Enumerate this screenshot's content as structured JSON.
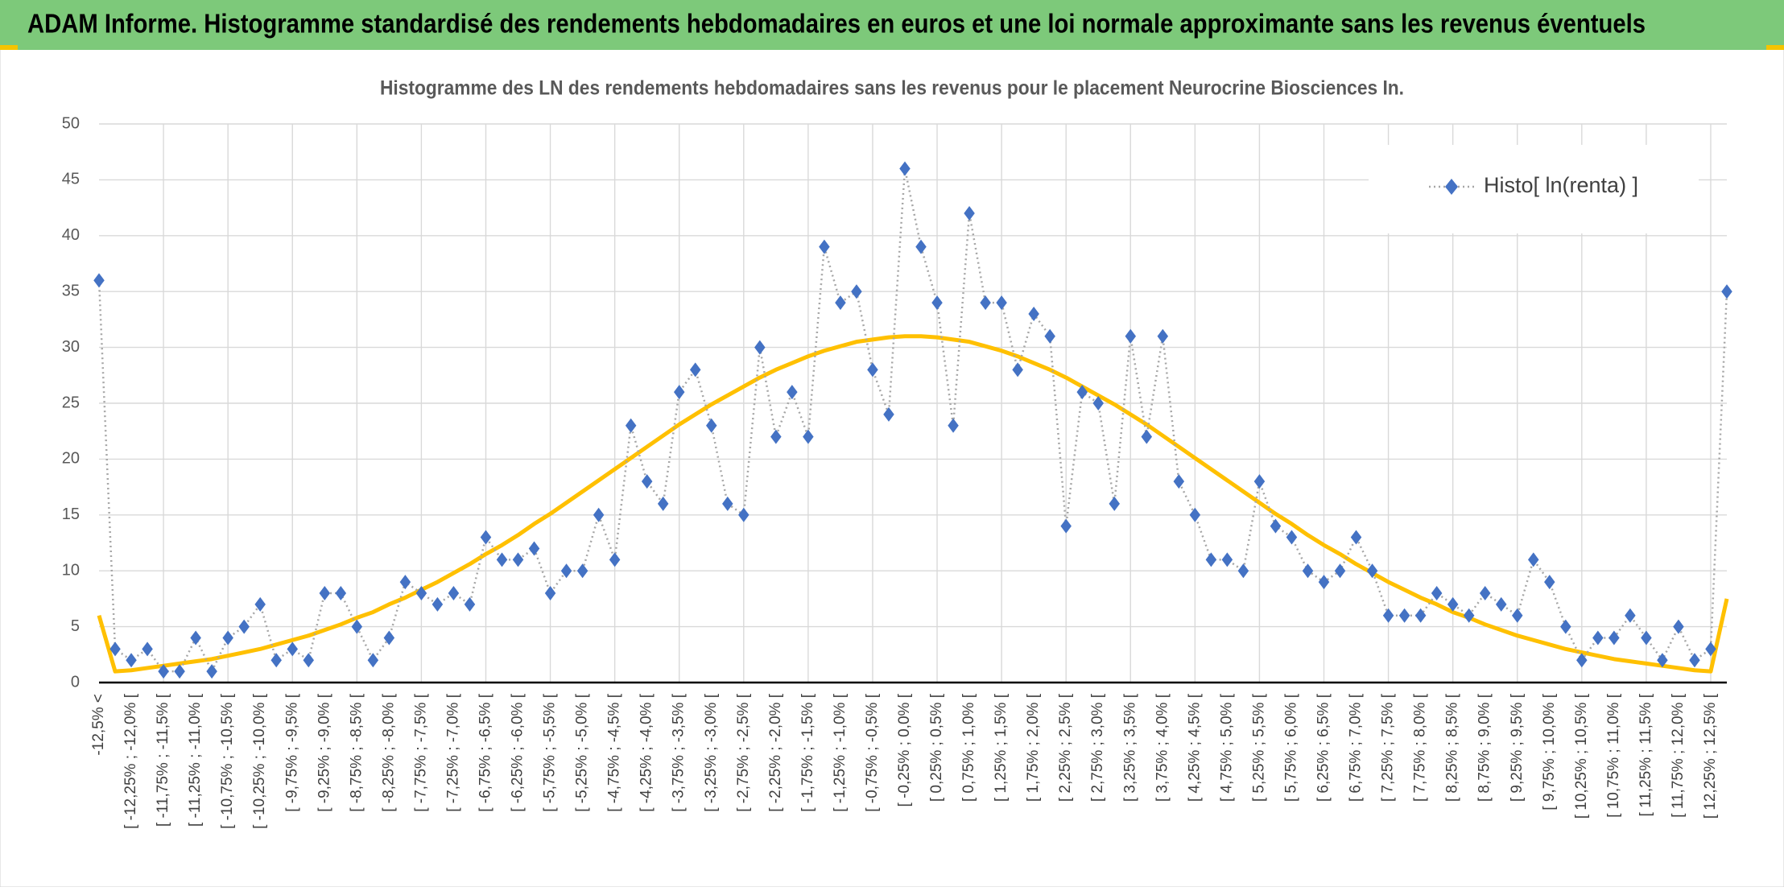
{
  "header": {
    "title": "ADAM Informe. Histogramme standardisé des rendements hebdomadaires en euros et une loi normale approximante sans les revenus éventuels"
  },
  "chart_data": {
    "type": "line",
    "title": "Histogramme des LN des rendements hebdomadaires sans les revenus pour le placement Neurocrine Biosciences In.",
    "categories": [
      "-12,5% <",
      null,
      "[ -12,25% ; -12,0% [",
      null,
      "[ -11,75% ; -11,5% [",
      null,
      "[ -11,25% ; -11,0% [",
      null,
      "[ -10,75% ; -10,5% [",
      null,
      "[ -10,25% ; -10,0% [",
      null,
      "[ -9,75% ; -9,5% [",
      null,
      "[ -9,25% ; -9,0% [",
      null,
      "[ -8,75% ; -8,5% [",
      null,
      "[ -8,25% ; -8,0% [",
      null,
      "[ -7,75% ; -7,5% [",
      null,
      "[ -7,25% ; -7,0% [",
      null,
      "[ -6,75% ; -6,5% [",
      null,
      "[ -6,25% ; -6,0% [",
      null,
      "[ -5,75% ; -5,5% [",
      null,
      "[ -5,25% ; -5,0% [",
      null,
      "[ -4,75% ; -4,5% [",
      null,
      "[ -4,25% ; -4,0% [",
      null,
      "[ -3,75% ; -3,5% [",
      null,
      "[ -3,25% ; -3,0% [",
      null,
      "[ -2,75% ; -2,5% [",
      null,
      "[ -2,25% ; -2,0% [",
      null,
      "[ -1,75% ; -1,5% [",
      null,
      "[ -1,25% ; -1,0% [",
      null,
      "[ -0,75% ; -0,5% [",
      null,
      "[ -0,25% ; 0,0% [",
      null,
      "[ 0,25% ; 0,5% [",
      null,
      "[ 0,75% ; 1,0% [",
      null,
      "[ 1,25% ; 1,5% [",
      null,
      "[ 1,75% ; 2,0% [",
      null,
      "[ 2,25% ; 2,5% [",
      null,
      "[ 2,75% ; 3,0% [",
      null,
      "[ 3,25% ; 3,5% [",
      null,
      "[ 3,75% ; 4,0% [",
      null,
      "[ 4,25% ; 4,5% [",
      null,
      "[ 4,75% ; 5,0% [",
      null,
      "[ 5,25% ; 5,5% [",
      null,
      "[ 5,75% ; 6,0% [",
      null,
      "[ 6,25% ; 6,5% [",
      null,
      "[ 6,75% ; 7,0% [",
      null,
      "[ 7,25% ; 7,5% [",
      null,
      "[ 7,75% ; 8,0% [",
      null,
      "[ 8,25% ; 8,5% [",
      null,
      "[ 8,75% ; 9,0% [",
      null,
      "[ 9,25% ; 9,5% [",
      null,
      "[ 9,75% ; 10,0% [",
      null,
      "[ 10,25% ; 10,5% [",
      null,
      "[ 10,75% ; 11,0% [",
      null,
      "[ 11,25% ; 11,5% [",
      null,
      "[ 11,75% ; 12,0% [",
      null,
      "[ 12,25% ; 12,5% [",
      null
    ],
    "series": [
      {
        "name": "Histo[ ln(renta) ]",
        "color": "#4472c4",
        "line_color": "#a6a6a6",
        "values": [
          36,
          3,
          2,
          3,
          1,
          1,
          4,
          1,
          4,
          5,
          7,
          2,
          3,
          2,
          8,
          8,
          5,
          2,
          4,
          9,
          8,
          7,
          8,
          7,
          13,
          11,
          11,
          12,
          8,
          10,
          10,
          15,
          11,
          23,
          18,
          16,
          26,
          28,
          23,
          16,
          15,
          30,
          22,
          26,
          22,
          39,
          34,
          35,
          28,
          24,
          46,
          39,
          34,
          23,
          42,
          34,
          34,
          28,
          33,
          31,
          14,
          26,
          25,
          16,
          31,
          22,
          31,
          18,
          15,
          11,
          11,
          10,
          18,
          14,
          13,
          10,
          9,
          10,
          13,
          10,
          6,
          6,
          6,
          8,
          7,
          6,
          8,
          7,
          6,
          11,
          9,
          5,
          2,
          4,
          4,
          6,
          4,
          2,
          5,
          2,
          3,
          35
        ]
      },
      {
        "color": "#ffc000",
        "values": [
          6,
          1.0,
          1.1,
          1.3,
          1.5,
          1.7,
          1.9,
          2.1,
          2.4,
          2.7,
          3.0,
          3.4,
          3.8,
          4.2,
          4.7,
          5.2,
          5.8,
          6.3,
          7.0,
          7.6,
          8.3,
          9.0,
          9.8,
          10.6,
          11.5,
          12.3,
          13.2,
          14.2,
          15.1,
          16.1,
          17.1,
          18.1,
          19.1,
          20.1,
          21.1,
          22.1,
          23.1,
          24.0,
          24.9,
          25.7,
          26.5,
          27.3,
          28.0,
          28.6,
          29.2,
          29.7,
          30.1,
          30.5,
          30.7,
          30.9,
          31.0,
          31.0,
          30.9,
          30.7,
          30.5,
          30.1,
          29.7,
          29.2,
          28.6,
          28.0,
          27.3,
          26.5,
          25.7,
          24.9,
          24.0,
          23.1,
          22.1,
          21.1,
          20.1,
          19.1,
          18.1,
          17.1,
          16.1,
          15.1,
          14.2,
          13.2,
          12.3,
          11.5,
          10.6,
          9.8,
          9.0,
          8.3,
          7.6,
          7.0,
          6.3,
          5.8,
          5.2,
          4.7,
          4.2,
          3.8,
          3.4,
          3.0,
          2.7,
          2.4,
          2.1,
          1.9,
          1.7,
          1.5,
          1.3,
          1.1,
          1.0,
          7.5
        ]
      }
    ],
    "ylim": [
      0,
      50
    ],
    "yticks": [
      0,
      5,
      10,
      15,
      20,
      25,
      30,
      35,
      40,
      45,
      50
    ],
    "grid": true,
    "legend": "upper right"
  }
}
